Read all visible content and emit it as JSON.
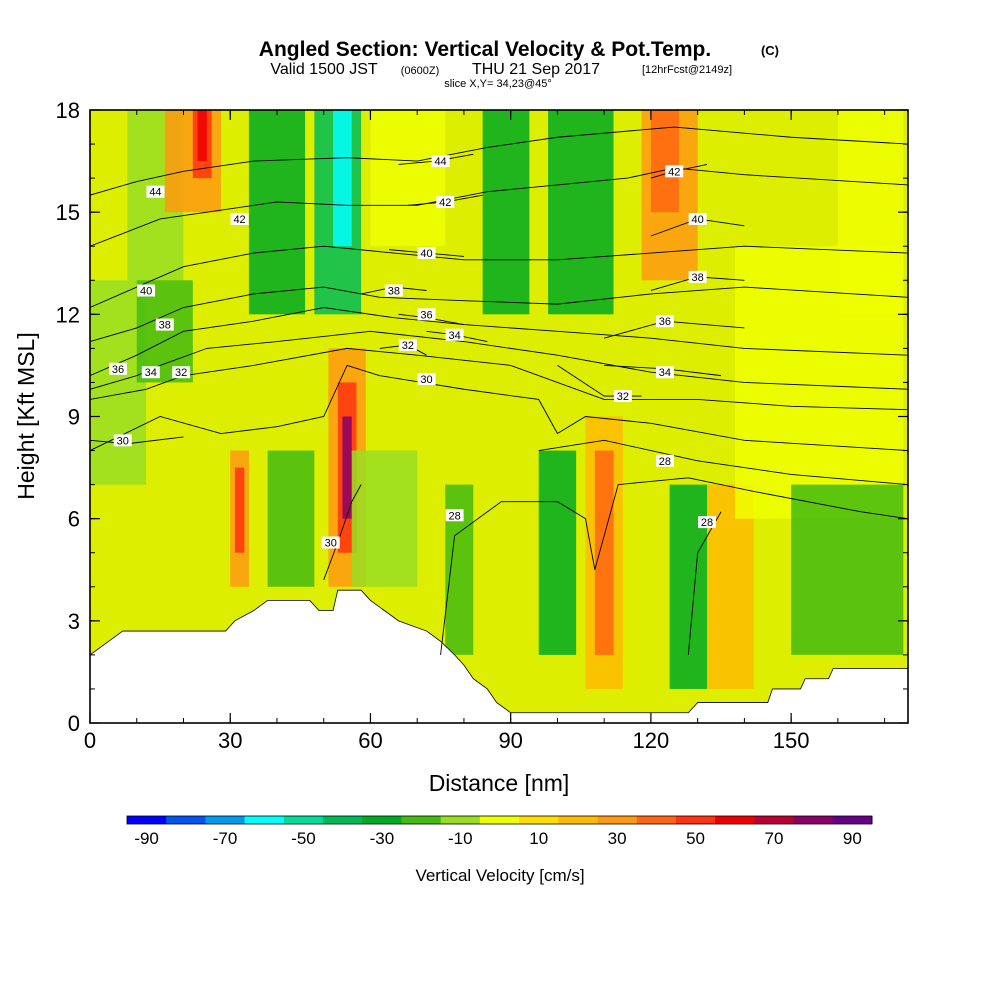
{
  "chart_data": {
    "type": "heatmap",
    "title": "Angled Section: Vertical Velocity & Pot.Temp.",
    "title_unit": "(C)",
    "valid_prefix": "Valid 1500 JST",
    "valid_utc": "(0600Z)",
    "valid_date": "THU 21 Sep 2017",
    "forecast_info": "[12hrFcst@2149z]",
    "slice_info": "slice X,Y= 34,23@45°",
    "xlabel": "Distance [nm]",
    "ylabel": "Height [Kft MSL]",
    "xlim": [
      0,
      175
    ],
    "ylim": [
      0,
      18
    ],
    "x_ticks": [
      "0",
      "30",
      "60",
      "90",
      "120",
      "150"
    ],
    "y_ticks": [
      "0",
      "3",
      "6",
      "9",
      "12",
      "15",
      "18"
    ],
    "colorbar": {
      "label": "Vertical Velocity [cm/s]",
      "tick_labels": [
        "-90",
        "-70",
        "-50",
        "-30",
        "-10",
        "10",
        "30",
        "50",
        "70",
        "90"
      ],
      "colors": [
        "#0000ff",
        "#0055ee",
        "#0099ee",
        "#00ffff",
        "#00dd99",
        "#00bb55",
        "#00aa22",
        "#44bb11",
        "#99dd22",
        "#eeff00",
        "#ffdd00",
        "#ffbb00",
        "#ff9911",
        "#ff6611",
        "#ff3311",
        "#ee0000",
        "#bb0033",
        "#880066",
        "#660088"
      ]
    },
    "velocity_cells": [
      {
        "x": 0,
        "y": 7,
        "w": 12,
        "h": 6,
        "c": 8
      },
      {
        "x": 8,
        "y": 13,
        "w": 12,
        "h": 5,
        "c": 8
      },
      {
        "x": 10,
        "y": 10,
        "w": 12,
        "h": 3,
        "c": 7
      },
      {
        "x": 16,
        "y": 15,
        "w": 12,
        "h": 3,
        "c": 12
      },
      {
        "x": 22,
        "y": 16,
        "w": 4,
        "h": 2,
        "c": 14
      },
      {
        "x": 23,
        "y": 16.5,
        "w": 2,
        "h": 1.5,
        "c": 15
      },
      {
        "x": 30,
        "y": 4,
        "w": 4,
        "h": 4,
        "c": 12
      },
      {
        "x": 31,
        "y": 5,
        "w": 2,
        "h": 2.5,
        "c": 14
      },
      {
        "x": 34,
        "y": 12,
        "w": 12,
        "h": 6,
        "c": 6
      },
      {
        "x": 38,
        "y": 4,
        "w": 10,
        "h": 4,
        "c": 7
      },
      {
        "x": 48,
        "y": 12,
        "w": 10,
        "h": 6,
        "c": 5
      },
      {
        "x": 52,
        "y": 14,
        "w": 4,
        "h": 4,
        "c": 3
      },
      {
        "x": 51,
        "y": 4,
        "w": 8,
        "h": 7,
        "c": 12
      },
      {
        "x": 53,
        "y": 5,
        "w": 4,
        "h": 5,
        "c": 14
      },
      {
        "x": 54,
        "y": 6,
        "w": 2,
        "h": 3,
        "c": 17
      },
      {
        "x": 56,
        "y": 4,
        "w": 14,
        "h": 4,
        "c": 8
      },
      {
        "x": 60,
        "y": 14,
        "w": 16,
        "h": 4,
        "c": 9
      },
      {
        "x": 76,
        "y": 2,
        "w": 6,
        "h": 5,
        "c": 7
      },
      {
        "x": 84,
        "y": 12,
        "w": 10,
        "h": 6,
        "c": 6
      },
      {
        "x": 96,
        "y": 2,
        "w": 8,
        "h": 6,
        "c": 6
      },
      {
        "x": 98,
        "y": 12,
        "w": 14,
        "h": 6,
        "c": 6
      },
      {
        "x": 106,
        "y": 1,
        "w": 8,
        "h": 8,
        "c": 11
      },
      {
        "x": 108,
        "y": 2,
        "w": 4,
        "h": 6,
        "c": 13
      },
      {
        "x": 118,
        "y": 13,
        "w": 12,
        "h": 5,
        "c": 12
      },
      {
        "x": 120,
        "y": 15,
        "w": 6,
        "h": 3,
        "c": 13
      },
      {
        "x": 124,
        "y": 1,
        "w": 8,
        "h": 6,
        "c": 6
      },
      {
        "x": 132,
        "y": 1,
        "w": 10,
        "h": 6,
        "c": 11
      },
      {
        "x": 138,
        "y": 6,
        "w": 36,
        "h": 8,
        "c": 9
      },
      {
        "x": 150,
        "y": 2,
        "w": 24,
        "h": 5,
        "c": 7
      },
      {
        "x": 160,
        "y": 12,
        "w": 14,
        "h": 6,
        "c": 9
      }
    ],
    "terrain_kft": [
      [
        0,
        2
      ],
      [
        4,
        2.4
      ],
      [
        7,
        2.7
      ],
      [
        14,
        2.7
      ],
      [
        29,
        2.7
      ],
      [
        31,
        3
      ],
      [
        35,
        3.3
      ],
      [
        38,
        3.6
      ],
      [
        47,
        3.6
      ],
      [
        49,
        3.3
      ],
      [
        52,
        3.3
      ],
      [
        53,
        3.9
      ],
      [
        58,
        3.9
      ],
      [
        60,
        3.6
      ],
      [
        63,
        3.3
      ],
      [
        66,
        3
      ],
      [
        72,
        2.7
      ],
      [
        75,
        2.4
      ],
      [
        78,
        2
      ],
      [
        80,
        1.7
      ],
      [
        82,
        1.3
      ],
      [
        85,
        1
      ],
      [
        87,
        0.6
      ],
      [
        90,
        0.3
      ],
      [
        100,
        0.3
      ],
      [
        110,
        0.3
      ],
      [
        128,
        0.3
      ],
      [
        130,
        0.6
      ],
      [
        145,
        0.6
      ],
      [
        146,
        1
      ],
      [
        152,
        1
      ],
      [
        153,
        1.3
      ],
      [
        158,
        1.3
      ],
      [
        159,
        1.6
      ],
      [
        175,
        1.6
      ]
    ],
    "theta_contours": [
      {
        "level": "28",
        "points": [
          [
            75,
            2
          ],
          [
            78,
            5.5
          ],
          [
            88,
            6.5
          ],
          [
            100,
            6.5
          ],
          [
            106,
            6
          ],
          [
            108,
            4.5
          ],
          [
            113,
            7
          ],
          [
            128,
            7.2
          ],
          [
            142,
            6.8
          ],
          [
            165,
            6.2
          ],
          [
            175,
            6
          ]
        ],
        "label_at": [
          78,
          6.1
        ]
      },
      {
        "level": "28",
        "points": [
          [
            128,
            2
          ],
          [
            130,
            5
          ],
          [
            135,
            6.2
          ]
        ],
        "label_at": [
          132,
          5.9
        ]
      },
      {
        "level": "28",
        "points": [
          [
            96,
            8
          ],
          [
            110,
            8.3
          ],
          [
            130,
            7.7
          ],
          [
            150,
            7.3
          ],
          [
            175,
            7
          ]
        ],
        "label_at": [
          123,
          7.7
        ]
      },
      {
        "level": "30",
        "points": [
          [
            0,
            8
          ],
          [
            15,
            9
          ],
          [
            28,
            8.5
          ],
          [
            40,
            8.7
          ],
          [
            50,
            9
          ],
          [
            55,
            10.5
          ],
          [
            62,
            10.2
          ],
          [
            80,
            9.8
          ],
          [
            96,
            9.5
          ],
          [
            100,
            8.5
          ],
          [
            106,
            9
          ],
          [
            120,
            8.8
          ],
          [
            140,
            8.3
          ],
          [
            175,
            8
          ]
        ],
        "label_at": [
          72,
          10.1
        ]
      },
      {
        "level": "30",
        "points": [
          [
            50,
            4.2
          ],
          [
            53,
            5.3
          ],
          [
            56,
            6.5
          ],
          [
            58,
            7
          ]
        ],
        "label_at": [
          51.5,
          5.3
        ]
      },
      {
        "level": "30",
        "points": [
          [
            0,
            8.3
          ],
          [
            8,
            8.2
          ],
          [
            20,
            8.4
          ]
        ],
        "label_at": [
          7,
          8.3
        ]
      },
      {
        "level": "32",
        "points": [
          [
            0,
            9.5
          ],
          [
            12,
            9.8
          ],
          [
            20,
            10.2
          ],
          [
            35,
            10.5
          ],
          [
            55,
            11
          ],
          [
            70,
            10.8
          ],
          [
            90,
            10.5
          ],
          [
            110,
            9.5
          ],
          [
            130,
            9.5
          ],
          [
            150,
            9.3
          ],
          [
            175,
            9.2
          ]
        ],
        "label_at": [
          19.5,
          10.3
        ]
      },
      {
        "level": "32",
        "points": [
          [
            62,
            11
          ],
          [
            68,
            11.1
          ],
          [
            72,
            10.8
          ]
        ],
        "label_at": [
          68,
          11.1
        ]
      },
      {
        "level": "32",
        "points": [
          [
            100,
            10.5
          ],
          [
            110,
            9.6
          ],
          [
            118,
            9.6
          ]
        ],
        "label_at": [
          114,
          9.6
        ]
      },
      {
        "level": "34",
        "points": [
          [
            0,
            9.8
          ],
          [
            10,
            10.2
          ],
          [
            15,
            10.5
          ],
          [
            25,
            11
          ],
          [
            40,
            11.2
          ],
          [
            60,
            11.5
          ],
          [
            80,
            11.2
          ],
          [
            100,
            10.8
          ],
          [
            120,
            10.3
          ],
          [
            140,
            10
          ],
          [
            175,
            9.8
          ]
        ],
        "label_at": [
          13,
          10.3
        ]
      },
      {
        "level": "34",
        "points": [
          [
            72,
            11.5
          ],
          [
            78,
            11.4
          ],
          [
            85,
            11.2
          ]
        ],
        "label_at": [
          78,
          11.4
        ]
      },
      {
        "level": "34",
        "points": [
          [
            110,
            10.5
          ],
          [
            123,
            10.4
          ],
          [
            135,
            10.2
          ]
        ],
        "label_at": [
          123,
          10.3
        ]
      },
      {
        "level": "36",
        "points": [
          [
            0,
            10.2
          ],
          [
            10,
            10.8
          ],
          [
            20,
            11.5
          ],
          [
            35,
            11.8
          ],
          [
            50,
            12.2
          ],
          [
            65,
            11.9
          ],
          [
            80,
            11.7
          ],
          [
            100,
            11.5
          ],
          [
            120,
            11.3
          ],
          [
            140,
            11
          ],
          [
            175,
            10.8
          ]
        ],
        "label_at": [
          6,
          10.4
        ]
      },
      {
        "level": "36",
        "points": [
          [
            66,
            12
          ],
          [
            72,
            11.9
          ],
          [
            80,
            11.7
          ]
        ],
        "label_at": [
          72,
          12
        ]
      },
      {
        "level": "36",
        "points": [
          [
            110,
            11.3
          ],
          [
            123,
            11.8
          ],
          [
            140,
            11.6
          ]
        ],
        "label_at": [
          123,
          11.8
        ]
      },
      {
        "level": "38",
        "points": [
          [
            0,
            11.2
          ],
          [
            10,
            11.6
          ],
          [
            20,
            12.2
          ],
          [
            35,
            12.6
          ],
          [
            50,
            12.8
          ],
          [
            62,
            12.5
          ],
          [
            80,
            12.4
          ],
          [
            100,
            12.3
          ],
          [
            120,
            12.6
          ],
          [
            140,
            12.8
          ],
          [
            175,
            12.5
          ]
        ],
        "label_at": [
          16,
          11.7
        ]
      },
      {
        "level": "38",
        "points": [
          [
            58,
            12.6
          ],
          [
            65,
            12.8
          ],
          [
            72,
            12.7
          ]
        ],
        "label_at": [
          65,
          12.7
        ]
      },
      {
        "level": "38",
        "points": [
          [
            120,
            12.7
          ],
          [
            130,
            13.1
          ],
          [
            140,
            13
          ]
        ],
        "label_at": [
          130,
          13.1
        ]
      },
      {
        "level": "40",
        "points": [
          [
            0,
            12.2
          ],
          [
            10,
            12.8
          ],
          [
            20,
            13.4
          ],
          [
            35,
            13.8
          ],
          [
            50,
            14
          ],
          [
            65,
            13.8
          ],
          [
            80,
            13.6
          ],
          [
            100,
            13.6
          ],
          [
            120,
            13.8
          ],
          [
            140,
            14
          ],
          [
            175,
            13.8
          ]
        ],
        "label_at": [
          12,
          12.7
        ]
      },
      {
        "level": "40",
        "points": [
          [
            64,
            13.9
          ],
          [
            72,
            13.8
          ],
          [
            80,
            13.7
          ]
        ],
        "label_at": [
          72,
          13.8
        ]
      },
      {
        "level": "40",
        "points": [
          [
            120,
            14.3
          ],
          [
            130,
            14.8
          ],
          [
            140,
            14.6
          ]
        ],
        "label_at": [
          130,
          14.8
        ]
      },
      {
        "level": "42",
        "points": [
          [
            0,
            14
          ],
          [
            15,
            14.8
          ],
          [
            25,
            15
          ],
          [
            40,
            15.3
          ],
          [
            55,
            15.2
          ],
          [
            70,
            15.2
          ],
          [
            85,
            15.6
          ],
          [
            100,
            15.8
          ],
          [
            115,
            16
          ],
          [
            125,
            16.3
          ],
          [
            140,
            16.1
          ],
          [
            175,
            15.8
          ]
        ],
        "label_at": [
          32,
          14.8
        ]
      },
      {
        "level": "42",
        "points": [
          [
            68,
            15.2
          ],
          [
            76,
            15.3
          ],
          [
            84,
            15.5
          ]
        ],
        "label_at": [
          76,
          15.3
        ]
      },
      {
        "level": "42",
        "points": [
          [
            120,
            16
          ],
          [
            125,
            16.2
          ],
          [
            132,
            16.4
          ]
        ],
        "label_at": [
          125,
          16.2
        ]
      },
      {
        "level": "44",
        "points": [
          [
            0,
            15.5
          ],
          [
            10,
            15.9
          ],
          [
            20,
            16.2
          ],
          [
            35,
            16.5
          ],
          [
            55,
            16.6
          ],
          [
            70,
            16.5
          ],
          [
            85,
            16.9
          ],
          [
            100,
            17.2
          ],
          [
            125,
            17.5
          ],
          [
            150,
            17.2
          ],
          [
            175,
            17
          ]
        ],
        "label_at": [
          14,
          15.6
        ]
      },
      {
        "level": "44",
        "points": [
          [
            66,
            16.4
          ],
          [
            74,
            16.5
          ],
          [
            82,
            16.7
          ]
        ],
        "label_at": [
          75,
          16.5
        ]
      }
    ]
  }
}
